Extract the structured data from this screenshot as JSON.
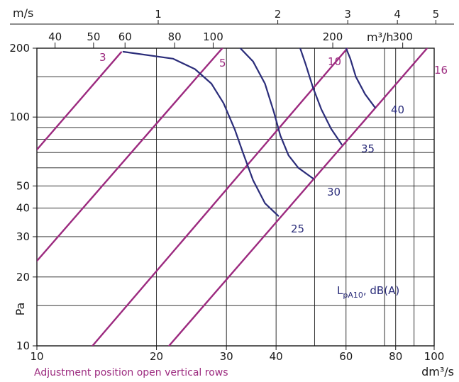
{
  "chart_data": {
    "type": "line",
    "caption": "Adjustment position open vertical rows",
    "x_axis": {
      "unit": "dm³/s",
      "scale": "log",
      "range": [
        10,
        100
      ],
      "ticks": [
        10,
        20,
        30,
        40,
        60,
        80,
        100
      ]
    },
    "y_axis": {
      "unit": "Pa",
      "scale": "log",
      "range": [
        10,
        200
      ],
      "ticks": [
        10,
        20,
        30,
        40,
        50,
        100,
        200
      ]
    },
    "top_axis_airflow": {
      "unit": "m³/h",
      "ticks": [
        40,
        50,
        60,
        80,
        100,
        200,
        300
      ]
    },
    "top_axis_velocity": {
      "unit": "m/s",
      "ticks": [
        1,
        2,
        3,
        4,
        5
      ]
    },
    "adjustment_lines": {
      "color": "#9c2a7f",
      "series": [
        {
          "name": "3",
          "points": [
            [
              10,
              72
            ],
            [
              16.3,
              192
            ]
          ]
        },
        {
          "name": "5",
          "points": [
            [
              10,
              23.5
            ],
            [
              25.5,
              152
            ],
            [
              32.8,
              250
            ]
          ]
        },
        {
          "name": "10",
          "points": [
            [
              13.8,
              10
            ],
            [
              60.5,
              200
            ]
          ]
        },
        {
          "name": "16",
          "points": [
            [
              21.5,
              10
            ],
            [
              96,
              200
            ]
          ]
        }
      ]
    },
    "sound_level_curves": {
      "color": "#2b2d7a",
      "legend": "L",
      "legend_sub": "pA10",
      "legend_suffix": ", dB(A)",
      "series": [
        {
          "name": "25",
          "points": [
            [
              16.5,
              193
            ],
            [
              22,
              180
            ],
            [
              25,
              162
            ],
            [
              27.5,
              140
            ],
            [
              29.5,
              115
            ],
            [
              31.5,
              88
            ],
            [
              33,
              70
            ],
            [
              35,
              53
            ],
            [
              37.5,
              42
            ],
            [
              40.5,
              37
            ]
          ]
        },
        {
          "name": "30",
          "points": [
            [
              32.5,
              200
            ],
            [
              35,
              175
            ],
            [
              37.5,
              140
            ],
            [
              39.5,
              105
            ],
            [
              41,
              83
            ],
            [
              43,
              68
            ],
            [
              45.5,
              60
            ],
            [
              49.5,
              54
            ]
          ]
        },
        {
          "name": "35",
          "points": [
            [
              46,
              200
            ],
            [
              47.5,
              170
            ],
            [
              49.5,
              135
            ],
            [
              52,
              108
            ],
            [
              55,
              89
            ],
            [
              58.5,
              76
            ]
          ]
        },
        {
          "name": "40",
          "points": [
            [
              60,
              200
            ],
            [
              61.5,
              180
            ],
            [
              63.5,
              150
            ],
            [
              67,
              126
            ],
            [
              71,
              110
            ]
          ]
        }
      ]
    }
  }
}
